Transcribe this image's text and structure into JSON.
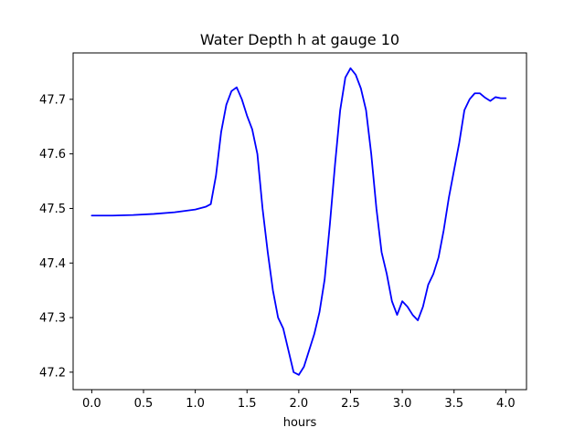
{
  "chart_data": {
    "type": "line",
    "title": "Water Depth h at gauge 10",
    "xlabel": "hours",
    "ylabel": "",
    "xlim": [
      -0.18,
      4.2
    ],
    "ylim": [
      47.168,
      47.785
    ],
    "xticks": [
      0.0,
      0.5,
      1.0,
      1.5,
      2.0,
      2.5,
      3.0,
      3.5,
      4.0
    ],
    "xtick_labels": [
      "0.0",
      "0.5",
      "1.0",
      "1.5",
      "2.0",
      "2.5",
      "3.0",
      "3.5",
      "4.0"
    ],
    "yticks": [
      47.2,
      47.3,
      47.4,
      47.5,
      47.6,
      47.7
    ],
    "ytick_labels": [
      "47.2",
      "47.3",
      "47.4",
      "47.5",
      "47.6",
      "47.7"
    ],
    "grid": false,
    "series": [
      {
        "color": "#0000ff",
        "x": [
          0.0,
          0.2,
          0.4,
          0.6,
          0.8,
          1.0,
          1.1,
          1.15,
          1.2,
          1.25,
          1.3,
          1.35,
          1.4,
          1.45,
          1.5,
          1.55,
          1.6,
          1.65,
          1.7,
          1.75,
          1.8,
          1.85,
          1.9,
          1.95,
          2.0,
          2.05,
          2.1,
          2.15,
          2.2,
          2.25,
          2.3,
          2.35,
          2.4,
          2.45,
          2.5,
          2.55,
          2.6,
          2.65,
          2.7,
          2.75,
          2.8,
          2.85,
          2.9,
          2.95,
          3.0,
          3.05,
          3.1,
          3.15,
          3.2,
          3.25,
          3.3,
          3.35,
          3.4,
          3.45,
          3.5,
          3.55,
          3.6,
          3.65,
          3.7,
          3.75,
          3.8,
          3.85,
          3.9,
          3.95,
          4.0
        ],
        "y": [
          47.487,
          47.487,
          47.488,
          47.49,
          47.493,
          47.498,
          47.503,
          47.508,
          47.56,
          47.64,
          47.69,
          47.715,
          47.722,
          47.7,
          47.67,
          47.645,
          47.6,
          47.5,
          47.42,
          47.35,
          47.3,
          47.28,
          47.24,
          47.2,
          47.195,
          47.21,
          47.24,
          47.27,
          47.31,
          47.37,
          47.47,
          47.58,
          47.68,
          47.74,
          47.757,
          47.745,
          47.72,
          47.68,
          47.6,
          47.5,
          47.42,
          47.38,
          47.33,
          47.305,
          47.33,
          47.32,
          47.305,
          47.295,
          47.32,
          47.36,
          47.38,
          47.41,
          47.46,
          47.52,
          47.57,
          47.62,
          47.68,
          47.7,
          47.711,
          47.711,
          47.703,
          47.697,
          47.704,
          47.702,
          47.702
        ]
      }
    ]
  }
}
